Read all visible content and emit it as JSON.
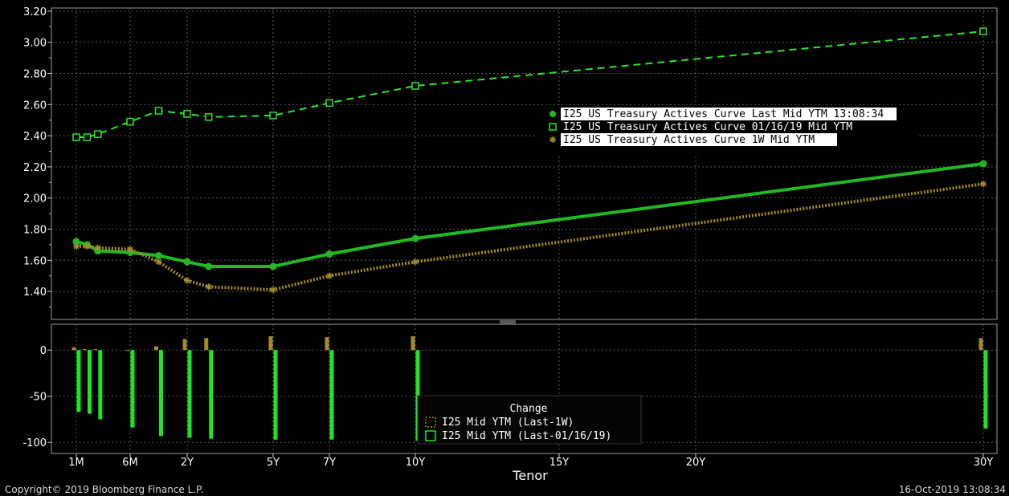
{
  "chart_data": [
    {
      "type": "line",
      "ylim": [
        1.22,
        3.22
      ],
      "yticks": [
        "3.20",
        "3.00",
        "2.80",
        "2.60",
        "2.40",
        "2.20",
        "2.00",
        "1.80",
        "1.60",
        "1.40"
      ],
      "grid": true,
      "legend": "top-right",
      "tenor_axis_years": [
        0.083,
        0.25,
        0.5,
        1,
        2,
        3,
        5,
        7,
        10,
        30
      ],
      "series": [
        {
          "name": "I25 US Treasury Actives Curve Last Mid YTM 13:08:34",
          "color": "#22b825",
          "style": "solid-dot",
          "values": [
            1.72,
            1.7,
            1.66,
            1.65,
            1.63,
            1.59,
            1.56,
            1.56,
            1.64,
            1.74,
            2.22
          ]
        },
        {
          "name": "I25 US Treasury Actives Curve 01/16/19 Mid YTM",
          "color": "#2ce62c",
          "style": "dashed-square",
          "values": [
            2.39,
            2.39,
            2.41,
            2.49,
            2.56,
            2.54,
            2.52,
            2.53,
            2.61,
            2.72,
            3.07
          ]
        },
        {
          "name": "I25 US Treasury Actives Curve 1W Mid YTM",
          "color": "#a58a2a",
          "style": "dotted-star",
          "values": [
            1.69,
            1.69,
            1.68,
            1.67,
            1.59,
            1.47,
            1.43,
            1.41,
            1.5,
            1.59,
            2.09
          ]
        }
      ],
      "x_years": [
        0.083,
        0.167,
        0.25,
        0.5,
        0.75,
        1,
        2,
        5,
        7,
        10,
        30
      ]
    },
    {
      "type": "bar",
      "title": "Change",
      "xlabel": "Tenor",
      "xticks": [
        "1M",
        "6M",
        "2Y",
        "5Y",
        "7Y",
        "10Y",
        "15Y",
        "20Y",
        "30Y"
      ],
      "yticks": [
        "0",
        "-50",
        "-100"
      ],
      "ylim": [
        -112,
        28
      ],
      "x_years": [
        0.083,
        0.167,
        0.25,
        0.5,
        0.75,
        1,
        2,
        5,
        7,
        10,
        30
      ],
      "series": [
        {
          "name": "I25 Mid YTM (Last-1W)",
          "color": "#a58a2a",
          "values": [
            3,
            1,
            1,
            -1,
            4,
            12,
            13,
            15,
            14,
            15,
            13
          ]
        },
        {
          "name": "I25 Mid YTM (Last-01/16/19)",
          "color": "#1ee61e",
          "values": [
            -67,
            -69,
            -75,
            -84,
            -93,
            -95,
            -96,
            -97,
            -97,
            -98,
            -85
          ]
        }
      ]
    }
  ],
  "legend_entries": [
    "I25 US Treasury Actives Curve Last Mid YTM 13:08:34",
    "I25 US Treasury Actives Curve 01/16/19 Mid YTM",
    "I25 US Treasury Actives Curve 1W Mid YTM"
  ],
  "footer": {
    "copyright": "Copyright© 2019 Bloomberg Finance L.P.",
    "timestamp": "16-Oct-2019 13:08:34"
  }
}
